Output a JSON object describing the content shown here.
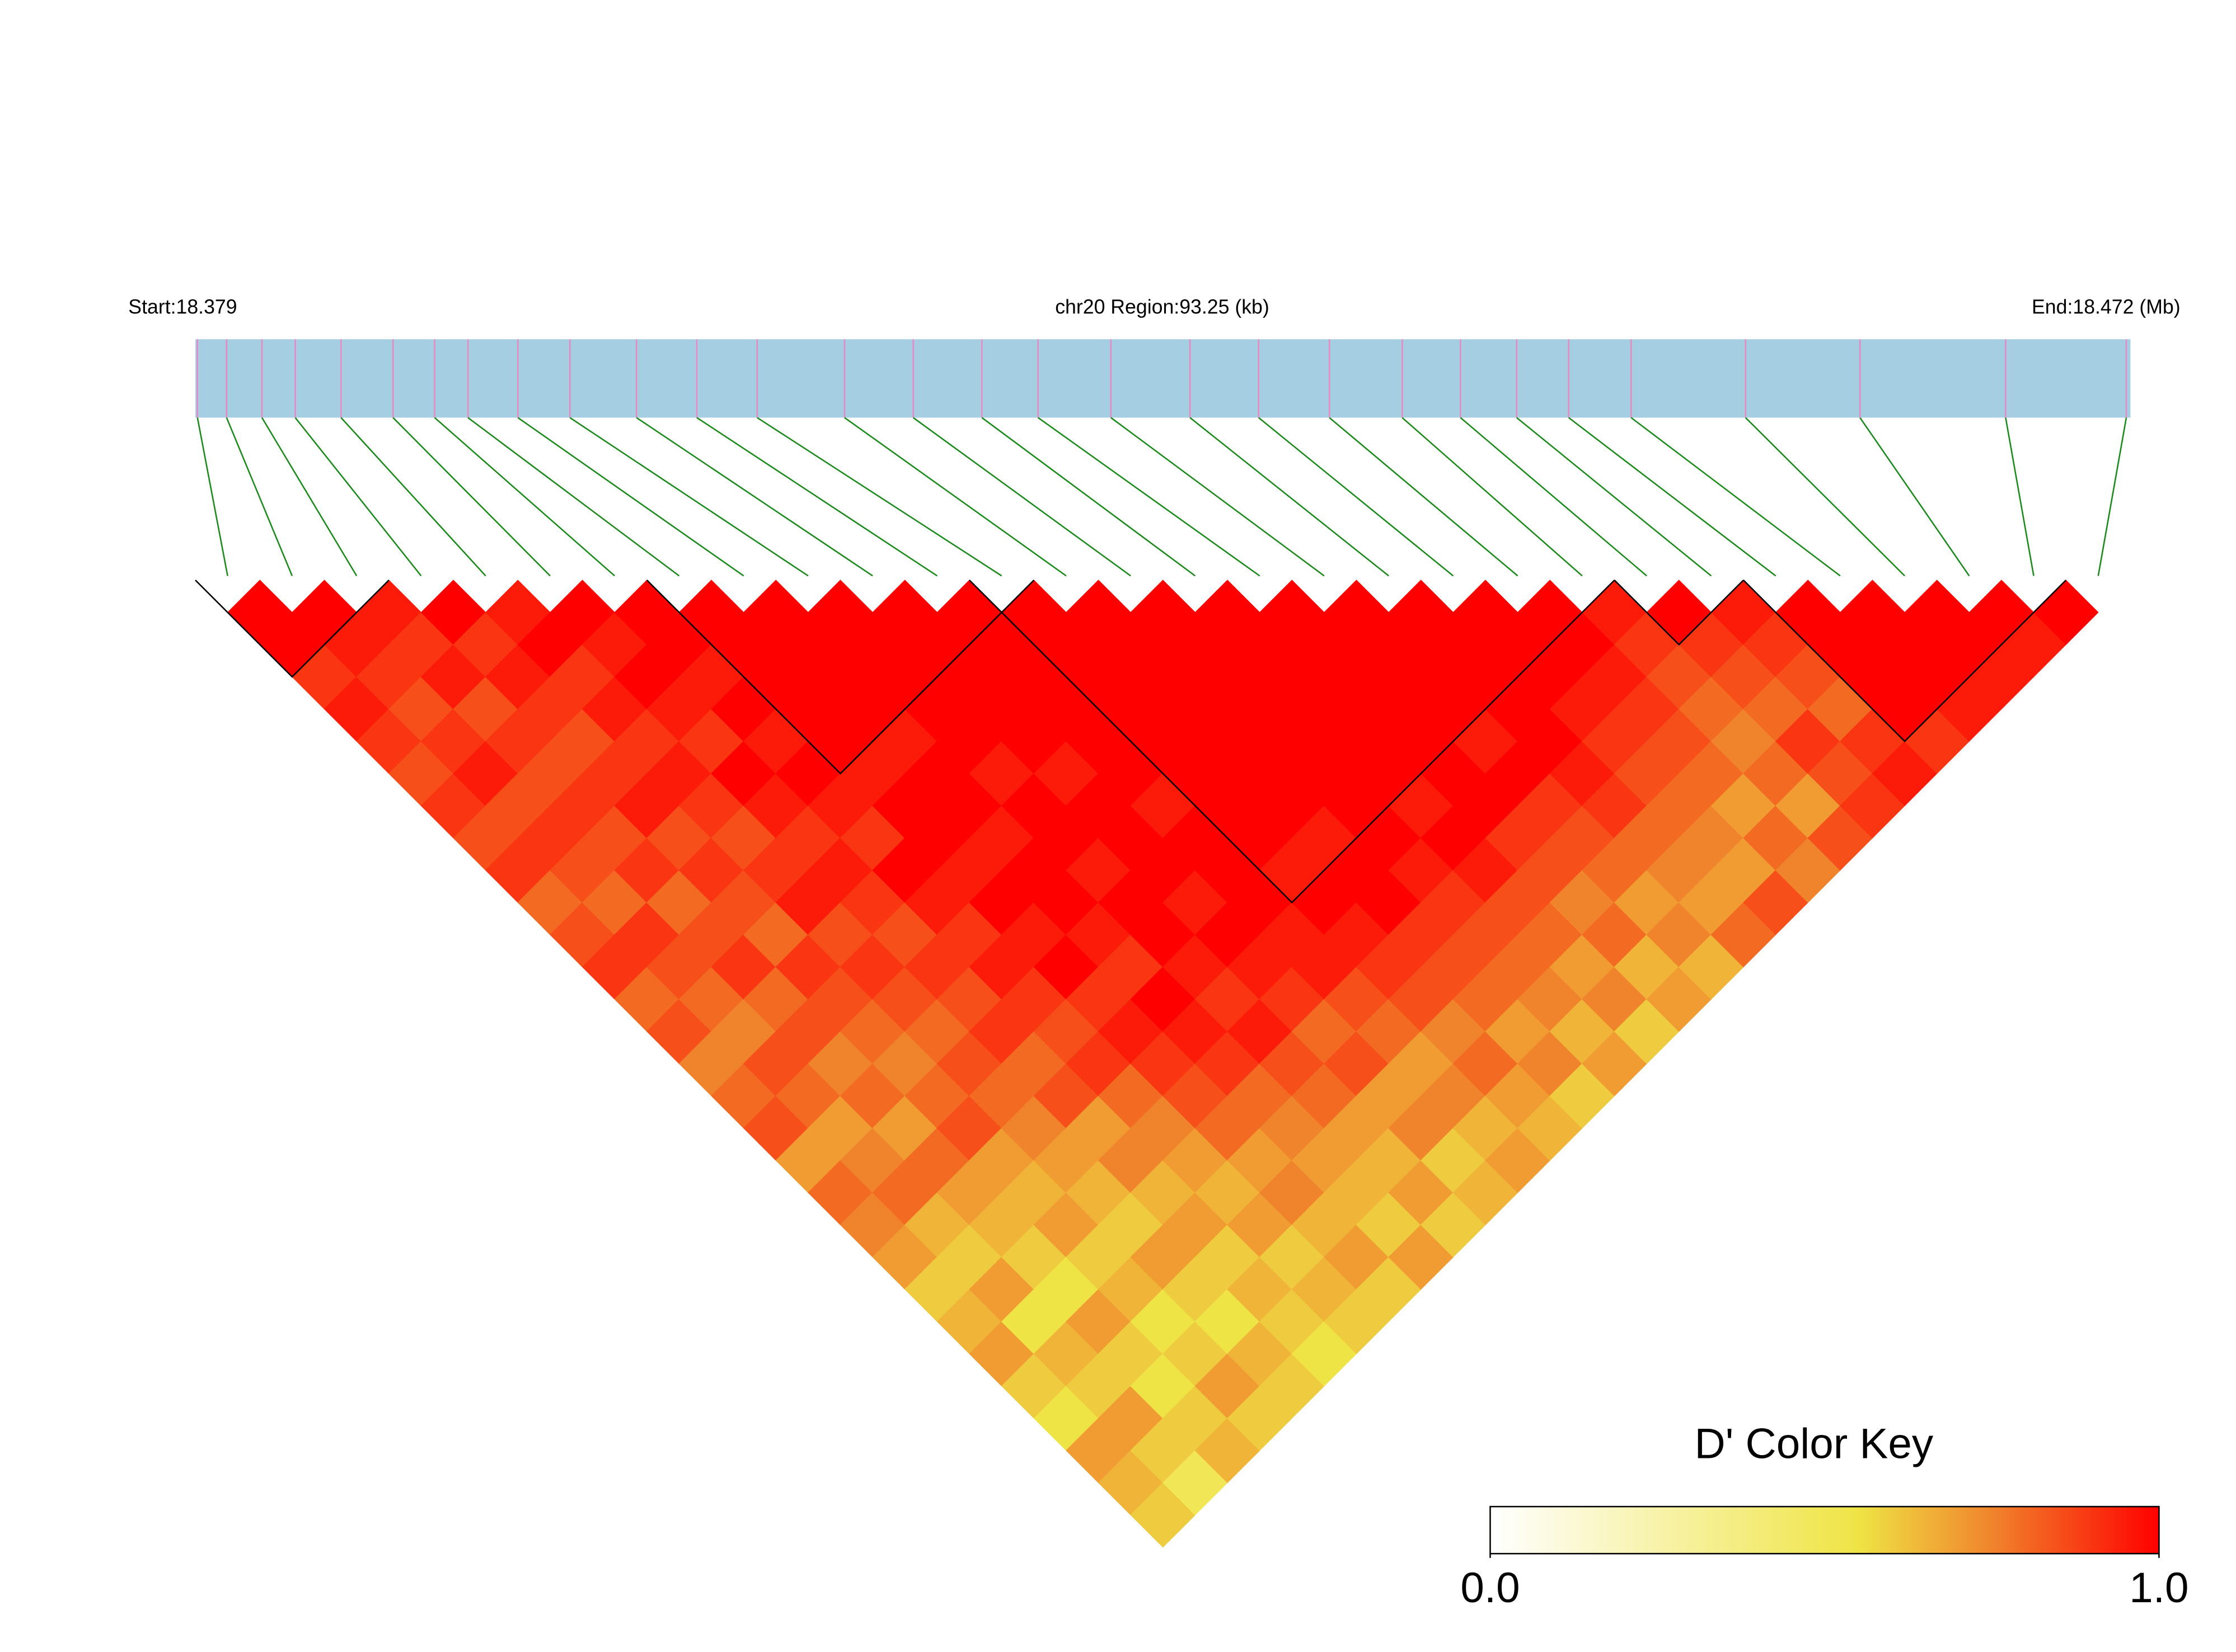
{
  "chart_data": {
    "type": "ld-heatmap",
    "start_label": "Start:18.379",
    "region_label": "chr20 Region:93.25 (kb)",
    "end_label": "End:18.472 (Mb)",
    "key_title": "D' Color Key",
    "xlim": [
      18.379,
      18.472
    ],
    "positions": [
      18.3791,
      18.3805,
      18.3822,
      18.3838,
      18.386,
      18.3885,
      18.3905,
      18.3921,
      18.3945,
      18.397,
      18.4002,
      18.4031,
      18.406,
      18.4102,
      18.4135,
      18.4168,
      18.4195,
      18.423,
      18.4268,
      18.4301,
      18.4335,
      18.437,
      18.4398,
      18.4425,
      18.445,
      18.448,
      18.4535,
      18.459,
      18.466,
      18.4718
    ],
    "dprime": [
      [
        1,
        1,
        0.9,
        0.95,
        0.9,
        0.85,
        0.9,
        0.85,
        0.9,
        0.8,
        0.85,
        0.9,
        0.8,
        0.85,
        0.75,
        0.8,
        0.85,
        0.7,
        0.8,
        0.75,
        0.7,
        0.6,
        0.65,
        0.7,
        0.6,
        0.55,
        0.7,
        0.65,
        0.6
      ],
      [
        1,
        0.95,
        0.9,
        0.85,
        0.9,
        0.95,
        0.85,
        0.9,
        0.85,
        0.8,
        0.9,
        0.85,
        0.8,
        0.75,
        0.85,
        0.8,
        0.7,
        0.75,
        0.8,
        0.65,
        0.6,
        0.7,
        0.55,
        0.65,
        0.6,
        0.7,
        0.6,
        0.5
      ],
      [
        0.95,
        0.9,
        0.95,
        0.85,
        0.9,
        0.85,
        0.9,
        0.85,
        0.9,
        0.8,
        0.85,
        0.9,
        0.8,
        0.85,
        0.75,
        0.8,
        0.7,
        0.8,
        0.7,
        0.65,
        0.6,
        0.55,
        0.7,
        0.6,
        0.55,
        0.6,
        0.65
      ],
      [
        1,
        0.9,
        0.95,
        0.9,
        0.85,
        0.9,
        0.95,
        0.85,
        0.9,
        0.85,
        0.8,
        0.9,
        0.85,
        0.8,
        0.75,
        0.8,
        0.85,
        0.7,
        0.65,
        0.7,
        0.6,
        0.65,
        0.55,
        0.6,
        0.7,
        0.6
      ],
      [
        0.95,
        1,
        0.9,
        0.95,
        0.9,
        0.95,
        0.9,
        0.85,
        0.9,
        0.95,
        0.85,
        0.9,
        0.85,
        0.8,
        0.85,
        0.8,
        0.75,
        0.7,
        0.65,
        0.6,
        0.7,
        0.6,
        0.55,
        0.65,
        0.6
      ],
      [
        1,
        0.95,
        1,
        0.95,
        0.9,
        1,
        0.95,
        0.9,
        0.95,
        0.9,
        0.85,
        0.9,
        0.85,
        0.9,
        0.8,
        0.85,
        0.7,
        0.75,
        0.65,
        0.7,
        0.6,
        0.65,
        0.6,
        0.55
      ],
      [
        1,
        1,
        0.95,
        1,
        0.95,
        1,
        0.95,
        0.9,
        1,
        0.95,
        0.9,
        0.95,
        0.9,
        0.85,
        0.9,
        0.8,
        0.75,
        0.7,
        0.65,
        0.7,
        0.6,
        0.65,
        0.6
      ],
      [
        1,
        1,
        1,
        1,
        1,
        0.95,
        1,
        1,
        0.95,
        1,
        0.95,
        1,
        0.9,
        0.95,
        0.9,
        0.85,
        0.8,
        0.7,
        0.75,
        0.65,
        0.7,
        0.6
      ],
      [
        1,
        1,
        1,
        1,
        0.95,
        1,
        1,
        0.95,
        1,
        1,
        0.95,
        0.9,
        1,
        0.95,
        0.9,
        0.8,
        0.75,
        0.7,
        0.65,
        0.6,
        0.7
      ],
      [
        1,
        1,
        1,
        1,
        1,
        0.95,
        1,
        1,
        0.95,
        1,
        1,
        0.95,
        0.9,
        0.95,
        0.85,
        0.8,
        0.7,
        0.65,
        0.7,
        0.6
      ],
      [
        1,
        1,
        1,
        1,
        1,
        0.95,
        1,
        1,
        1,
        0.95,
        1,
        0.95,
        0.9,
        0.8,
        0.85,
        0.7,
        0.75,
        0.6,
        0.65
      ],
      [
        1,
        1,
        1,
        1,
        1,
        1,
        0.95,
        1,
        1,
        1,
        0.95,
        0.95,
        0.85,
        0.8,
        0.7,
        0.75,
        0.65,
        0.7
      ],
      [
        1,
        1,
        1,
        1,
        1,
        1,
        1,
        1,
        0.95,
        1,
        0.95,
        0.9,
        0.85,
        0.75,
        0.8,
        0.7,
        0.65
      ],
      [
        1,
        1,
        1,
        1,
        1,
        1,
        1,
        0.95,
        1,
        1,
        0.9,
        0.85,
        0.8,
        0.7,
        0.75,
        0.6
      ],
      [
        1,
        1,
        1,
        1,
        1,
        1,
        1,
        1,
        0.95,
        0.9,
        0.85,
        0.8,
        0.75,
        0.65,
        0.7
      ],
      [
        1,
        1,
        1,
        1,
        1,
        1,
        0.95,
        1,
        0.95,
        0.85,
        0.8,
        0.7,
        0.75,
        0.6
      ],
      [
        1,
        1,
        1,
        1,
        1,
        1,
        1,
        0.9,
        0.85,
        0.75,
        0.8,
        0.65,
        0.7
      ],
      [
        1,
        1,
        1,
        1,
        0.95,
        1,
        0.9,
        0.85,
        0.8,
        0.7,
        0.75,
        0.65
      ],
      [
        1,
        1,
        1,
        1,
        1,
        0.95,
        0.9,
        0.8,
        0.75,
        0.7,
        0.8
      ],
      [
        1,
        1,
        1,
        0.95,
        0.9,
        0.85,
        0.8,
        0.75,
        0.7,
        0.85
      ],
      [
        1,
        1,
        0.95,
        0.9,
        0.85,
        0.8,
        0.7,
        0.8,
        0.75
      ],
      [
        0.95,
        0.9,
        0.85,
        0.8,
        0.75,
        0.8,
        0.7,
        0.85
      ],
      [
        1,
        0.9,
        0.85,
        0.8,
        0.9,
        0.85,
        0.9
      ],
      [
        0.95,
        0.9,
        0.85,
        0.8,
        0.9,
        0.95
      ],
      [
        1,
        1,
        1,
        1,
        0.9
      ],
      [
        1,
        1,
        1,
        0.95
      ],
      [
        1,
        1,
        0.95
      ],
      [
        1,
        0.95
      ],
      [
        1
      ]
    ],
    "blocks": [
      [
        0,
        2
      ],
      [
        7,
        12
      ],
      [
        12,
        21
      ],
      [
        22,
        23
      ],
      [
        24,
        28
      ]
    ],
    "colorscale": [
      {
        "value": 0,
        "color": "#ffffff"
      },
      {
        "value": 0.55,
        "color": "#efe445"
      },
      {
        "value": 0.75,
        "color": "#f0842c"
      },
      {
        "value": 1,
        "color": "#ff0000"
      }
    ],
    "key_ticks": [
      {
        "value": 0,
        "label": "0.0"
      },
      {
        "value": 1,
        "label": "1.0"
      }
    ],
    "bar_color": "#a6cee3",
    "snp_color": "#e78ac3",
    "connector_color": "#1a8a1a"
  }
}
